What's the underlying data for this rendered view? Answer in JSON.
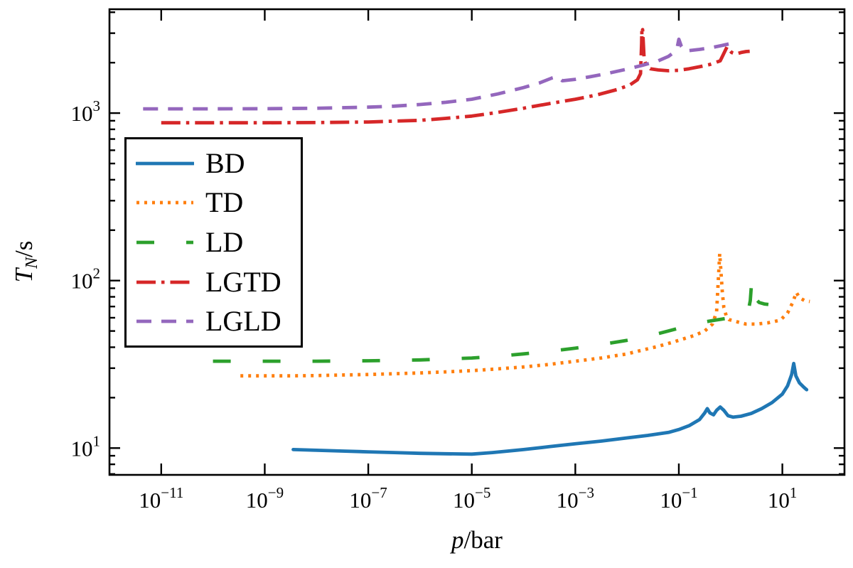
{
  "figure": {
    "background": "#ffffff",
    "axis_color": "#000000",
    "xlabel": {
      "italic": "p",
      "rest": "/bar"
    },
    "ylabel": {
      "italic": "T",
      "sub": "N",
      "rest": "/s"
    }
  },
  "chart_data": {
    "type": "line",
    "title": "",
    "xlabel": "p/bar",
    "ylabel": "T_N/s",
    "x_scale": "log",
    "y_scale": "log",
    "grid": false,
    "legend_position": "upper-left-inside",
    "xlim_exp": [
      -12.0,
      2.2
    ],
    "ylim_exp": [
      0.84,
      3.62
    ],
    "x_tick_exponents": [
      -11,
      -9,
      -7,
      -5,
      -3,
      -1,
      1
    ],
    "y_tick_exponents": [
      1,
      2,
      3
    ],
    "tick_direction": "in",
    "series": [
      {
        "name": "BD",
        "color": "#1f77b4",
        "style": "solid",
        "dash": null,
        "points": [
          [
            -8.45,
            9.8
          ],
          [
            -8,
            9.7
          ],
          [
            -7.5,
            9.6
          ],
          [
            -7,
            9.5
          ],
          [
            -6.5,
            9.4
          ],
          [
            -6,
            9.3
          ],
          [
            -5.5,
            9.25
          ],
          [
            -5,
            9.2
          ],
          [
            -4.6,
            9.4
          ],
          [
            -4,
            9.8
          ],
          [
            -3.5,
            10.2
          ],
          [
            -3,
            10.6
          ],
          [
            -2.5,
            11.0
          ],
          [
            -2,
            11.5
          ],
          [
            -1.6,
            11.9
          ],
          [
            -1.2,
            12.4
          ],
          [
            -1,
            12.9
          ],
          [
            -0.8,
            13.6
          ],
          [
            -0.6,
            14.8
          ],
          [
            -0.5,
            16.2
          ],
          [
            -0.45,
            17.2
          ],
          [
            -0.4,
            16.2
          ],
          [
            -0.33,
            15.8
          ],
          [
            -0.27,
            16.8
          ],
          [
            -0.2,
            17.6
          ],
          [
            -0.13,
            16.8
          ],
          [
            -0.05,
            15.6
          ],
          [
            0.05,
            15.3
          ],
          [
            0.2,
            15.5
          ],
          [
            0.4,
            16.1
          ],
          [
            0.6,
            17.2
          ],
          [
            0.8,
            18.7
          ],
          [
            1.0,
            21.0
          ],
          [
            1.1,
            23.5
          ],
          [
            1.18,
            27.5
          ],
          [
            1.22,
            32.0
          ],
          [
            1.26,
            27.0
          ],
          [
            1.33,
            24.5
          ],
          [
            1.42,
            23.0
          ],
          [
            1.47,
            22.3
          ]
        ]
      },
      {
        "name": "TD",
        "color": "#ff7f0e",
        "style": "dotted",
        "dash": [
          4,
          7
        ],
        "points": [
          [
            -9.47,
            27
          ],
          [
            -9,
            27
          ],
          [
            -8.5,
            27
          ],
          [
            -8,
            27.1
          ],
          [
            -7.5,
            27.3
          ],
          [
            -7,
            27.5
          ],
          [
            -6.5,
            27.8
          ],
          [
            -6,
            28.1
          ],
          [
            -5.5,
            28.5
          ],
          [
            -5,
            29
          ],
          [
            -4.5,
            29.7
          ],
          [
            -4,
            30.5
          ],
          [
            -3.5,
            31.6
          ],
          [
            -3,
            33
          ],
          [
            -2.5,
            34.5
          ],
          [
            -2,
            36.5
          ],
          [
            -1.7,
            38.5
          ],
          [
            -1.4,
            40.5
          ],
          [
            -1.1,
            43
          ],
          [
            -0.9,
            45
          ],
          [
            -0.7,
            47
          ],
          [
            -0.5,
            50
          ],
          [
            -0.35,
            55
          ],
          [
            -0.27,
            65
          ],
          [
            -0.21,
            145
          ],
          [
            -0.16,
            85
          ],
          [
            -0.13,
            69
          ],
          [
            -0.08,
            61
          ],
          [
            -0.03,
            58.5
          ],
          [
            0.1,
            57
          ],
          [
            0.3,
            55
          ],
          [
            0.5,
            55
          ],
          [
            0.73,
            56
          ],
          [
            0.96,
            58
          ],
          [
            1.1,
            64
          ],
          [
            1.2,
            74
          ],
          [
            1.27,
            85
          ],
          [
            1.33,
            79
          ],
          [
            1.43,
            76
          ],
          [
            1.53,
            75
          ]
        ]
      },
      {
        "name": "LD",
        "color": "#2ca02c",
        "style": "dashed",
        "dash": [
          25,
          45
        ],
        "points": [
          [
            -10,
            33
          ],
          [
            -9,
            33
          ],
          [
            -8,
            33
          ],
          [
            -7,
            33.2
          ],
          [
            -6,
            33.6
          ],
          [
            -5,
            34.5
          ],
          [
            -4.5,
            35.3
          ],
          [
            -4,
            36.5
          ],
          [
            -3.5,
            37.8
          ],
          [
            -3,
            39.5
          ],
          [
            -2.5,
            41.5
          ],
          [
            -2,
            44
          ],
          [
            -1.6,
            46.5
          ],
          [
            -1.2,
            50
          ],
          [
            -0.9,
            53
          ],
          [
            -0.6,
            56
          ],
          [
            -0.3,
            58
          ],
          [
            0,
            60
          ],
          [
            0.2,
            61.5
          ],
          [
            0.33,
            63
          ],
          [
            0.38,
            76
          ],
          [
            0.41,
            102
          ],
          [
            0.45,
            80
          ],
          [
            0.55,
            74
          ],
          [
            0.65,
            72.5
          ],
          [
            0.73,
            72
          ]
        ]
      },
      {
        "name": "LGTD",
        "color": "#d62728",
        "style": "dashdot",
        "dash": [
          27,
          8,
          4.5,
          8
        ],
        "points": [
          [
            -11,
            875
          ],
          [
            -10,
            875
          ],
          [
            -9,
            875
          ],
          [
            -8,
            878
          ],
          [
            -7,
            885
          ],
          [
            -6.5,
            895
          ],
          [
            -6,
            905
          ],
          [
            -5.5,
            930
          ],
          [
            -5,
            960
          ],
          [
            -4.5,
            1010
          ],
          [
            -4,
            1070
          ],
          [
            -3.5,
            1140
          ],
          [
            -3,
            1210
          ],
          [
            -2.6,
            1280
          ],
          [
            -2.2,
            1380
          ],
          [
            -1.95,
            1470
          ],
          [
            -1.8,
            1580
          ],
          [
            -1.74,
            1720
          ],
          [
            -1.72,
            2600
          ],
          [
            -1.715,
            3100
          ],
          [
            -1.708,
            2450
          ],
          [
            -1.7,
            3150
          ],
          [
            -1.69,
            2800
          ],
          [
            -1.67,
            2100
          ],
          [
            -1.63,
            1920
          ],
          [
            -1.55,
            1840
          ],
          [
            -1.4,
            1810
          ],
          [
            -1.2,
            1790
          ],
          [
            -1.0,
            1800
          ],
          [
            -0.8,
            1840
          ],
          [
            -0.6,
            1890
          ],
          [
            -0.4,
            1950
          ],
          [
            -0.2,
            2050
          ],
          [
            -0.07,
            2480
          ],
          [
            0.02,
            2300
          ],
          [
            0.1,
            2250
          ],
          [
            0.2,
            2300
          ],
          [
            0.3,
            2330
          ],
          [
            0.37,
            2340
          ]
        ]
      },
      {
        "name": "LGLD",
        "color": "#9467bd",
        "style": "dashed",
        "dash": [
          21,
          14
        ],
        "points": [
          [
            -11.35,
            1060
          ],
          [
            -11,
            1060
          ],
          [
            -10,
            1060
          ],
          [
            -9,
            1062
          ],
          [
            -8,
            1068
          ],
          [
            -7,
            1085
          ],
          [
            -6.5,
            1100
          ],
          [
            -6,
            1125
          ],
          [
            -5.5,
            1160
          ],
          [
            -5,
            1210
          ],
          [
            -4.5,
            1300
          ],
          [
            -4,
            1420
          ],
          [
            -3.7,
            1510
          ],
          [
            -3.45,
            1620
          ],
          [
            -3.35,
            1650
          ],
          [
            -3.25,
            1560
          ],
          [
            -3,
            1590
          ],
          [
            -2.7,
            1650
          ],
          [
            -2.4,
            1720
          ],
          [
            -2,
            1830
          ],
          [
            -1.7,
            1930
          ],
          [
            -1.4,
            2050
          ],
          [
            -1.2,
            2180
          ],
          [
            -1.1,
            2300
          ],
          [
            -1.03,
            2480
          ],
          [
            -1.0,
            2760
          ],
          [
            -0.95,
            2500
          ],
          [
            -0.88,
            2350
          ],
          [
            -0.8,
            2360
          ],
          [
            -0.6,
            2400
          ],
          [
            -0.4,
            2450
          ],
          [
            -0.2,
            2520
          ],
          [
            0,
            2600
          ],
          [
            0.14,
            2660
          ]
        ]
      }
    ]
  }
}
